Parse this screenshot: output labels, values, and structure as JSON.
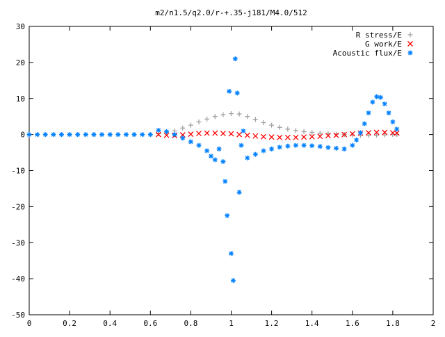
{
  "chart_data": {
    "type": "scatter",
    "title": "m2/n1.5/q2.0/r-+.35-j181/M4.0/512",
    "xlabel": "",
    "ylabel": "",
    "xlim": [
      0,
      2
    ],
    "ylim": [
      -50,
      30
    ],
    "x_ticks": [
      0,
      0.2,
      0.4,
      0.6,
      0.8,
      1,
      1.2,
      1.4,
      1.6,
      1.8,
      2
    ],
    "x_tick_labels": [
      "0",
      "0.2",
      "0.4",
      "0.6",
      "0.8",
      "1",
      "1.2",
      "1.4",
      "1.6",
      "1.8",
      "2"
    ],
    "y_ticks": [
      -50,
      -40,
      -30,
      -20,
      -10,
      0,
      10,
      20,
      30
    ],
    "y_tick_labels": [
      "-50",
      "-40",
      "-30",
      "-20",
      "-10",
      "0",
      "10",
      "20",
      "30"
    ],
    "grid": false,
    "legend_position": "top-right",
    "series": [
      {
        "name": "R stress/E",
        "marker": "+",
        "color": "#a0a0a0",
        "x": [
          0.64,
          0.68,
          0.72,
          0.76,
          0.8,
          0.84,
          0.88,
          0.92,
          0.96,
          1.0,
          1.04,
          1.08,
          1.12,
          1.16,
          1.2,
          1.24,
          1.28,
          1.32,
          1.36,
          1.4,
          1.44,
          1.48,
          1.52,
          1.56,
          1.6,
          1.64,
          1.68,
          1.72,
          1.76,
          1.8,
          1.82
        ],
        "y": [
          0.2,
          0.5,
          1.0,
          1.8,
          2.6,
          3.5,
          4.3,
          5.0,
          5.5,
          5.8,
          5.7,
          5.0,
          4.2,
          3.3,
          2.6,
          2.0,
          1.5,
          1.1,
          0.8,
          0.6,
          0.4,
          0.3,
          0.1,
          0.0,
          -0.1,
          -0.2,
          -0.2,
          -0.2,
          -0.1,
          0.0,
          0.0
        ]
      },
      {
        "name": "G work/E",
        "marker": "x",
        "color": "#ff0000",
        "x": [
          0.64,
          0.68,
          0.72,
          0.76,
          0.8,
          0.84,
          0.88,
          0.92,
          0.96,
          1.0,
          1.04,
          1.08,
          1.12,
          1.16,
          1.2,
          1.24,
          1.28,
          1.32,
          1.36,
          1.4,
          1.44,
          1.48,
          1.52,
          1.56,
          1.6,
          1.64,
          1.68,
          1.72,
          1.76,
          1.8,
          1.82
        ],
        "y": [
          0.0,
          -0.2,
          -0.3,
          -0.1,
          0.1,
          0.3,
          0.4,
          0.4,
          0.3,
          0.2,
          0.0,
          -0.2,
          -0.4,
          -0.6,
          -0.7,
          -0.8,
          -0.8,
          -0.8,
          -0.7,
          -0.6,
          -0.5,
          -0.3,
          -0.2,
          0.0,
          0.2,
          0.4,
          0.5,
          0.6,
          0.6,
          0.5,
          0.4
        ]
      },
      {
        "name": "Acoustic flux/E",
        "marker": "*",
        "color": "#0080ff",
        "x": [
          0,
          0.04,
          0.08,
          0.12,
          0.16,
          0.2,
          0.24,
          0.28,
          0.32,
          0.36,
          0.4,
          0.44,
          0.48,
          0.52,
          0.56,
          0.6,
          0.64,
          0.68,
          0.72,
          0.76,
          0.8,
          0.84,
          0.88,
          0.9,
          0.92,
          0.94,
          0.96,
          0.97,
          0.98,
          0.99,
          1.0,
          1.01,
          1.02,
          1.03,
          1.04,
          1.05,
          1.06,
          1.08,
          1.12,
          1.16,
          1.2,
          1.24,
          1.28,
          1.32,
          1.36,
          1.4,
          1.44,
          1.48,
          1.52,
          1.56,
          1.6,
          1.62,
          1.64,
          1.66,
          1.68,
          1.7,
          1.72,
          1.74,
          1.76,
          1.78,
          1.8,
          1.82
        ],
        "y": [
          0,
          0,
          0,
          0,
          0,
          0,
          0,
          0,
          0,
          0,
          0,
          0,
          0,
          0,
          0,
          0,
          1.2,
          0.8,
          0.0,
          -1.0,
          -2.0,
          -3.0,
          -4.5,
          -6.0,
          -7.0,
          -4.0,
          -7.5,
          -13.0,
          -22.5,
          12.0,
          -33.0,
          -40.5,
          21.0,
          11.5,
          -16.0,
          -3.0,
          1.0,
          -6.5,
          -5.5,
          -4.5,
          -4.0,
          -3.5,
          -3.2,
          -3.0,
          -3.0,
          -3.1,
          -3.3,
          -3.6,
          -3.8,
          -4.0,
          -3.0,
          -1.5,
          0.5,
          3.0,
          6.0,
          9.0,
          10.5,
          10.3,
          8.5,
          6.0,
          3.5,
          1.5
        ]
      }
    ]
  }
}
